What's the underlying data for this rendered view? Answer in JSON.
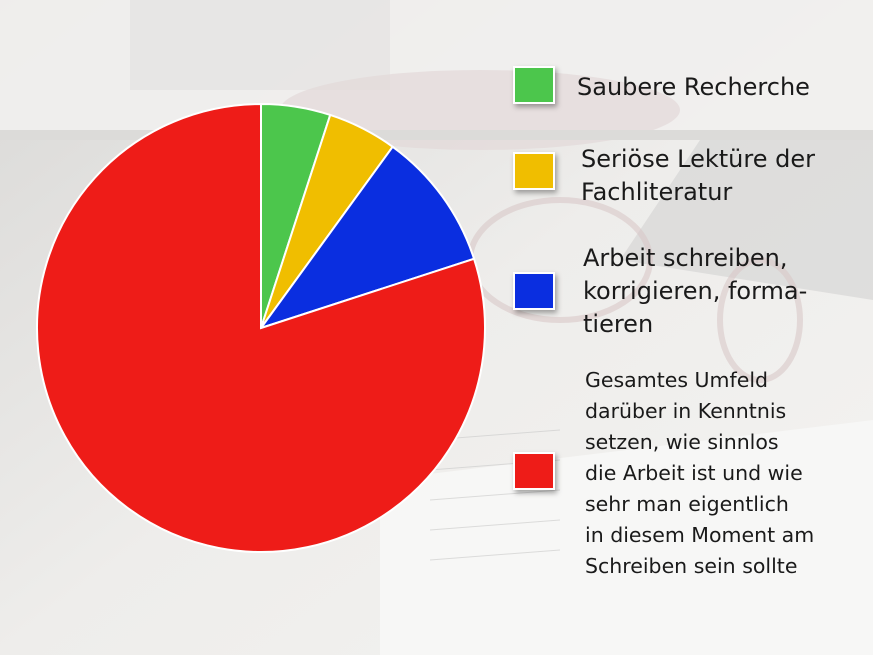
{
  "chart_data": {
    "type": "pie",
    "title": "",
    "slices": [
      {
        "label": "Saubere Recherche",
        "value": 5,
        "color": "#4cc64c"
      },
      {
        "label": "Seriöse Lektüre der Fachliteratur",
        "value": 5,
        "color": "#f0be00"
      },
      {
        "label": "Arbeit schreiben, korrigieren, formatieren",
        "value": 10,
        "color": "#0a2ee0"
      },
      {
        "label": "Gesamtes Umfeld darüber in Kenntnis setzen, wie sinnlos die Arbeit ist und wie sehr man eigentlich in diesem Moment am Schreiben sein sollte",
        "value": 80,
        "color": "#ee1c18"
      }
    ],
    "legend_placement": "right"
  },
  "legend": {
    "item1": "Saubere Recherche",
    "item2": "Seriöse Lektüre der\nFachliteratur",
    "item3": "Arbeit schreiben,\nkorrigieren, forma-\ntieren",
    "item4": "Gesamtes Umfeld\ndarüber in Kenntnis\nsetzen, wie sinnlos\ndie Arbeit ist und wie\nsehr man eigentlich\nin diesem Moment am\nSchreiben sein sollte"
  }
}
